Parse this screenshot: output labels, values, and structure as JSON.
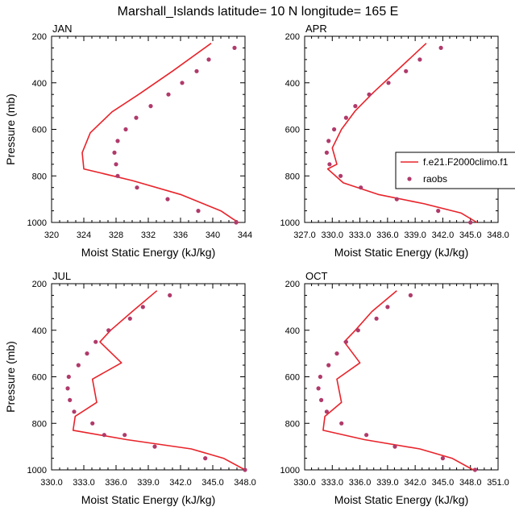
{
  "figure_title": "Marshall_Islands  latitude= 10 N longitude= 165 E",
  "colors": {
    "model_line": "#e8232a",
    "raobs_marker": "#b03a6b",
    "axes": "#000000"
  },
  "legend": {
    "items": [
      "f.e21.F2000climo.f1",
      "raobs"
    ],
    "placement": "right, over APR panel"
  },
  "chart_data": [
    {
      "type": "line",
      "panel_label": "JAN",
      "xlabel": "Moist Static Energy (kJ/kg)",
      "ylabel": "Pressure (mb)",
      "xlim": [
        320,
        344
      ],
      "xticks": [
        "320",
        "324",
        "328",
        "332",
        "336",
        "340",
        "344"
      ],
      "ylim": [
        1000,
        200
      ],
      "yticks": [
        "200",
        "400",
        "600",
        "800",
        "1000"
      ],
      "series": [
        {
          "name": "f.e21.F2000climo.f1",
          "style": "line",
          "x": [
            339.8,
            335,
            330.8,
            327.5,
            324.8,
            323.8,
            324,
            330,
            336,
            341,
            342.5,
            343.2
          ],
          "y": [
            230,
            350,
            450,
            525,
            615,
            700,
            770,
            820,
            880,
            950,
            985,
            1000
          ]
        },
        {
          "name": "raobs",
          "style": "marker",
          "x": [
            342.7,
            339.5,
            338,
            336.2,
            334.5,
            332.3,
            330.5,
            329.2,
            328.2,
            327.8,
            328,
            328.2,
            330.6,
            334.4,
            338.2,
            342.9
          ],
          "y": [
            250,
            300,
            350,
            400,
            450,
            500,
            550,
            600,
            650,
            700,
            750,
            800,
            850,
            900,
            950,
            1000
          ]
        }
      ]
    },
    {
      "type": "line",
      "panel_label": "APR",
      "xlabel": "Moist Static Energy (kJ/kg)",
      "ylabel": "",
      "xlim": [
        327,
        348
      ],
      "xticks": [
        "327.0",
        "330.0",
        "333.0",
        "336.0",
        "339.0",
        "342.0",
        "345.0",
        "348.0"
      ],
      "ylim": [
        1000,
        200
      ],
      "yticks": [
        "200",
        "400",
        "600",
        "800",
        "1000"
      ],
      "series": [
        {
          "name": "f.e21.F2000climo.f1",
          "style": "line",
          "x": [
            340.2,
            337.5,
            334.5,
            332.5,
            331,
            330,
            330.5,
            329.5,
            331.2,
            335,
            340,
            344,
            345.7
          ],
          "y": [
            230,
            330,
            440,
            520,
            600,
            680,
            750,
            770,
            830,
            880,
            920,
            960,
            1000
          ]
        },
        {
          "name": "raobs",
          "style": "marker",
          "x": [
            341.8,
            339.5,
            338,
            336.1,
            334,
            332.5,
            331.5,
            330.2,
            329.6,
            329.4,
            329.7,
            330.9,
            333.1,
            337,
            341.5,
            345
          ],
          "y": [
            250,
            300,
            350,
            400,
            450,
            500,
            550,
            600,
            650,
            700,
            750,
            800,
            850,
            900,
            950,
            1000
          ]
        }
      ]
    },
    {
      "type": "line",
      "panel_label": "JUL",
      "xlabel": "Moist Static Energy (kJ/kg)",
      "ylabel": "Pressure (mb)",
      "xlim": [
        330,
        348
      ],
      "xticks": [
        "330.0",
        "333.0",
        "336.0",
        "339.0",
        "342.0",
        "345.0",
        "348.0"
      ],
      "ylim": [
        1000,
        200
      ],
      "yticks": [
        "200",
        "400",
        "600",
        "800",
        "1000"
      ],
      "series": [
        {
          "name": "f.e21.F2000climo.f1",
          "style": "line",
          "x": [
            339.8,
            337.5,
            335.5,
            334.5,
            336.5,
            333.8,
            334.2,
            332.2,
            332,
            337,
            343,
            346,
            348
          ],
          "y": [
            230,
            320,
            400,
            450,
            540,
            610,
            710,
            770,
            830,
            870,
            910,
            950,
            1000
          ]
        },
        {
          "name": "raobs",
          "style": "marker",
          "x": [
            341,
            338.5,
            337.3,
            335.3,
            334.1,
            333.3,
            332.5,
            331.6,
            331.5,
            331.7,
            332.1,
            333.8,
            334.9,
            336.8,
            339.6,
            344.3,
            348
          ],
          "y": [
            250,
            300,
            350,
            400,
            450,
            500,
            550,
            600,
            650,
            700,
            750,
            800,
            850,
            850,
            900,
            950,
            1000
          ]
        }
      ]
    },
    {
      "type": "line",
      "panel_label": "OCT",
      "xlabel": "Moist Static Energy (kJ/kg)",
      "ylabel": "",
      "xlim": [
        330,
        351
      ],
      "xticks": [
        "330.0",
        "333.0",
        "336.0",
        "339.0",
        "342.0",
        "345.0",
        "348.0",
        "351.0"
      ],
      "ylim": [
        1000,
        200
      ],
      "yticks": [
        "200",
        "400",
        "600",
        "800",
        "1000"
      ],
      "series": [
        {
          "name": "f.e21.F2000climo.f1",
          "style": "line",
          "x": [
            340,
            337.3,
            335.5,
            334.3,
            336,
            333.5,
            334,
            332.2,
            332,
            336.5,
            342.5,
            346,
            348.3
          ],
          "y": [
            230,
            320,
            400,
            450,
            540,
            610,
            710,
            770,
            830,
            870,
            910,
            950,
            1000
          ]
        },
        {
          "name": "raobs",
          "style": "marker",
          "x": [
            341.5,
            339,
            337.8,
            335.8,
            334.5,
            333.5,
            332.6,
            331.7,
            331.5,
            331.8,
            332.4,
            334,
            336.7,
            339.8,
            345,
            348.5
          ],
          "y": [
            250,
            300,
            350,
            400,
            450,
            500,
            550,
            600,
            650,
            700,
            750,
            800,
            850,
            900,
            950,
            1000
          ]
        }
      ]
    }
  ]
}
